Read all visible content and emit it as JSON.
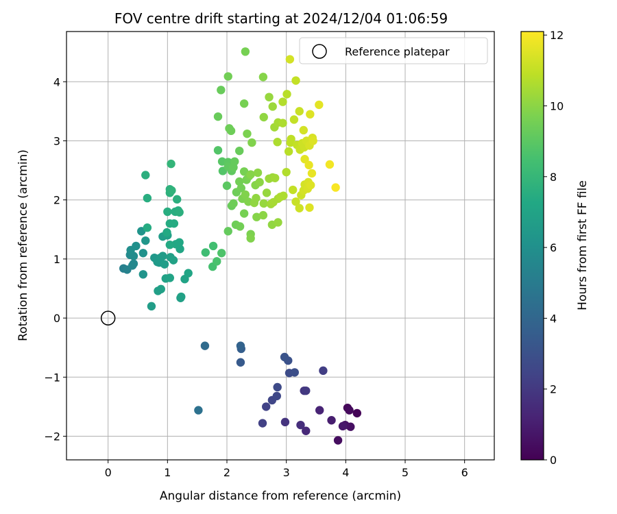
{
  "chart_data": {
    "type": "scatter",
    "title": "FOV centre drift starting at 2024/12/04 01:06:59",
    "xlabel": "Angular distance from reference (arcmin)",
    "ylabel": "Rotation from reference (arcmin)",
    "xlim": [
      -0.7,
      6.5
    ],
    "ylim": [
      -2.4,
      4.85
    ],
    "xticks": [
      0,
      1,
      2,
      3,
      4,
      5,
      6
    ],
    "yticks": [
      -2,
      -1,
      0,
      1,
      2,
      3,
      4
    ],
    "xtick_labels": [
      "0",
      "1",
      "2",
      "3",
      "4",
      "5",
      "6"
    ],
    "ytick_labels": [
      "−2",
      "−1",
      "0",
      "1",
      "2",
      "3",
      "4"
    ],
    "grid": true,
    "legend": {
      "placement": "upper right",
      "entries": [
        "Reference platepar"
      ]
    },
    "reference_point": {
      "x": 0,
      "y": 0,
      "marker": "open-circle"
    },
    "colorbar": {
      "label": "Hours from first FF file",
      "colormap": "viridis",
      "range": [
        0,
        12.1
      ],
      "ticks": [
        0,
        2,
        4,
        6,
        8,
        10,
        12
      ],
      "tick_labels": [
        "0",
        "2",
        "4",
        "6",
        "8",
        "10",
        "12"
      ]
    },
    "series": [
      {
        "points": [
          {
            "x": 3.87,
            "y": -2.07,
            "c": 0.4
          },
          {
            "x": 4.19,
            "y": -1.61,
            "c": 0.1
          },
          {
            "x": 4.03,
            "y": -1.52,
            "c": 0.2
          },
          {
            "x": 4.06,
            "y": -1.56,
            "c": 0.3
          },
          {
            "x": 4.08,
            "y": -1.84,
            "c": 0.5
          },
          {
            "x": 3.99,
            "y": -1.81,
            "c": 0.6
          },
          {
            "x": 3.95,
            "y": -1.83,
            "c": 0.8
          },
          {
            "x": 3.76,
            "y": -1.73,
            "c": 1.0
          },
          {
            "x": 3.56,
            "y": -1.56,
            "c": 1.2
          },
          {
            "x": 3.33,
            "y": -1.91,
            "c": 1.4
          },
          {
            "x": 3.24,
            "y": -1.81,
            "c": 1.6
          },
          {
            "x": 3.3,
            "y": -1.23,
            "c": 1.9
          },
          {
            "x": 3.33,
            "y": -1.23,
            "c": 2.0
          },
          {
            "x": 3.62,
            "y": -0.89,
            "c": 2.2
          },
          {
            "x": 2.98,
            "y": -1.76,
            "c": 1.8
          },
          {
            "x": 2.6,
            "y": -1.78,
            "c": 2.3
          },
          {
            "x": 2.66,
            "y": -1.5,
            "c": 2.4
          },
          {
            "x": 2.76,
            "y": -1.39,
            "c": 2.5
          },
          {
            "x": 2.84,
            "y": -1.32,
            "c": 2.6
          },
          {
            "x": 2.85,
            "y": -1.17,
            "c": 2.7
          },
          {
            "x": 3.05,
            "y": -0.93,
            "c": 2.8
          },
          {
            "x": 3.14,
            "y": -0.92,
            "c": 2.9
          },
          {
            "x": 3.03,
            "y": -0.72,
            "c": 3.0
          },
          {
            "x": 2.97,
            "y": -0.66,
            "c": 3.1
          },
          {
            "x": 2.23,
            "y": -0.75,
            "c": 3.4
          },
          {
            "x": 2.24,
            "y": -0.52,
            "c": 3.6
          },
          {
            "x": 2.23,
            "y": -0.47,
            "c": 3.8
          },
          {
            "x": 1.63,
            "y": -0.47,
            "c": 4.2
          },
          {
            "x": 1.52,
            "y": -1.56,
            "c": 4.5
          },
          {
            "x": 0.26,
            "y": 0.84,
            "c": 5.2
          },
          {
            "x": 0.32,
            "y": 0.82,
            "c": 5.3
          },
          {
            "x": 0.41,
            "y": 0.89,
            "c": 5.5
          },
          {
            "x": 0.43,
            "y": 0.92,
            "c": 5.6
          },
          {
            "x": 0.37,
            "y": 1.07,
            "c": 5.7
          },
          {
            "x": 0.43,
            "y": 1.05,
            "c": 5.8
          },
          {
            "x": 0.38,
            "y": 1.15,
            "c": 5.9
          },
          {
            "x": 0.47,
            "y": 1.22,
            "c": 6.0
          },
          {
            "x": 0.59,
            "y": 1.1,
            "c": 6.1
          },
          {
            "x": 0.56,
            "y": 1.47,
            "c": 6.2
          },
          {
            "x": 0.63,
            "y": 1.31,
            "c": 6.3
          },
          {
            "x": 0.59,
            "y": 0.74,
            "c": 6.2
          },
          {
            "x": 0.78,
            "y": 1.02,
            "c": 6.4
          },
          {
            "x": 0.83,
            "y": 0.95,
            "c": 6.5
          },
          {
            "x": 0.86,
            "y": 0.94,
            "c": 6.5
          },
          {
            "x": 0.88,
            "y": 1.02,
            "c": 6.6
          },
          {
            "x": 0.92,
            "y": 1.05,
            "c": 6.6
          },
          {
            "x": 0.95,
            "y": 0.91,
            "c": 6.7
          },
          {
            "x": 0.92,
            "y": 1.38,
            "c": 6.7
          },
          {
            "x": 1.0,
            "y": 1.4,
            "c": 6.8
          },
          {
            "x": 1.05,
            "y": 1.03,
            "c": 6.8
          },
          {
            "x": 1.1,
            "y": 0.98,
            "c": 6.9
          },
          {
            "x": 0.97,
            "y": 0.67,
            "c": 6.9
          },
          {
            "x": 1.04,
            "y": 0.68,
            "c": 7.0
          },
          {
            "x": 0.89,
            "y": 0.49,
            "c": 6.9
          },
          {
            "x": 0.84,
            "y": 0.46,
            "c": 6.8
          },
          {
            "x": 0.73,
            "y": 0.2,
            "c": 6.7
          },
          {
            "x": 1.22,
            "y": 0.34,
            "c": 6.8
          },
          {
            "x": 1.23,
            "y": 0.36,
            "c": 6.9
          },
          {
            "x": 1.29,
            "y": 0.66,
            "c": 7.0
          },
          {
            "x": 1.35,
            "y": 0.76,
            "c": 7.1
          },
          {
            "x": 1.21,
            "y": 1.17,
            "c": 7.1
          },
          {
            "x": 1.2,
            "y": 1.28,
            "c": 7.2
          },
          {
            "x": 1.14,
            "y": 1.25,
            "c": 7.2
          },
          {
            "x": 1.04,
            "y": 1.24,
            "c": 7.3
          },
          {
            "x": 0.99,
            "y": 1.45,
            "c": 7.3
          },
          {
            "x": 1.04,
            "y": 1.6,
            "c": 7.4
          },
          {
            "x": 1.11,
            "y": 1.6,
            "c": 7.4
          },
          {
            "x": 1.13,
            "y": 1.8,
            "c": 7.5
          },
          {
            "x": 1.18,
            "y": 1.82,
            "c": 7.5
          },
          {
            "x": 1.2,
            "y": 1.79,
            "c": 7.6
          },
          {
            "x": 1.0,
            "y": 1.8,
            "c": 7.5
          },
          {
            "x": 1.16,
            "y": 2.01,
            "c": 7.6
          },
          {
            "x": 1.04,
            "y": 2.12,
            "c": 7.7
          },
          {
            "x": 1.04,
            "y": 2.18,
            "c": 7.7
          },
          {
            "x": 1.07,
            "y": 2.16,
            "c": 7.8
          },
          {
            "x": 0.66,
            "y": 2.03,
            "c": 7.5
          },
          {
            "x": 0.66,
            "y": 1.53,
            "c": 7.4
          },
          {
            "x": 0.63,
            "y": 2.42,
            "c": 7.6
          },
          {
            "x": 1.06,
            "y": 2.61,
            "c": 7.9
          },
          {
            "x": 1.64,
            "y": 1.11,
            "c": 8.3
          },
          {
            "x": 1.77,
            "y": 1.22,
            "c": 8.4
          },
          {
            "x": 1.76,
            "y": 0.87,
            "c": 8.5
          },
          {
            "x": 1.83,
            "y": 0.96,
            "c": 8.6
          },
          {
            "x": 1.91,
            "y": 1.1,
            "c": 8.7
          },
          {
            "x": 1.85,
            "y": 2.84,
            "c": 8.8
          },
          {
            "x": 1.93,
            "y": 2.49,
            "c": 8.8
          },
          {
            "x": 1.92,
            "y": 2.65,
            "c": 8.9
          },
          {
            "x": 2.0,
            "y": 2.24,
            "c": 9.0
          },
          {
            "x": 2.02,
            "y": 2.64,
            "c": 9.0
          },
          {
            "x": 2.02,
            "y": 2.56,
            "c": 9.1
          },
          {
            "x": 2.08,
            "y": 2.49,
            "c": 9.1
          },
          {
            "x": 2.11,
            "y": 2.55,
            "c": 9.2
          },
          {
            "x": 2.13,
            "y": 2.65,
            "c": 9.2
          },
          {
            "x": 2.21,
            "y": 2.83,
            "c": 9.3
          },
          {
            "x": 2.08,
            "y": 1.9,
            "c": 9.3
          },
          {
            "x": 2.11,
            "y": 1.94,
            "c": 9.4
          },
          {
            "x": 2.16,
            "y": 2.13,
            "c": 9.4
          },
          {
            "x": 2.21,
            "y": 2.31,
            "c": 9.5
          },
          {
            "x": 2.24,
            "y": 2.2,
            "c": 9.5
          },
          {
            "x": 2.29,
            "y": 2.48,
            "c": 9.6
          },
          {
            "x": 2.33,
            "y": 2.34,
            "c": 9.6
          },
          {
            "x": 2.37,
            "y": 2.4,
            "c": 9.7
          },
          {
            "x": 2.26,
            "y": 2.02,
            "c": 9.7
          },
          {
            "x": 2.31,
            "y": 2.09,
            "c": 9.8
          },
          {
            "x": 2.36,
            "y": 1.97,
            "c": 9.8
          },
          {
            "x": 2.4,
            "y": 2.43,
            "c": 9.9
          },
          {
            "x": 2.48,
            "y": 2.25,
            "c": 9.9
          },
          {
            "x": 2.52,
            "y": 2.46,
            "c": 10.0
          },
          {
            "x": 2.55,
            "y": 2.3,
            "c": 10.0
          },
          {
            "x": 2.49,
            "y": 2.03,
            "c": 10.1
          },
          {
            "x": 2.46,
            "y": 1.95,
            "c": 10.1
          },
          {
            "x": 2.62,
            "y": 1.94,
            "c": 10.2
          },
          {
            "x": 2.67,
            "y": 2.12,
            "c": 10.2
          },
          {
            "x": 2.71,
            "y": 2.36,
            "c": 10.3
          },
          {
            "x": 2.77,
            "y": 2.38,
            "c": 10.3
          },
          {
            "x": 2.81,
            "y": 2.37,
            "c": 10.4
          },
          {
            "x": 2.74,
            "y": 1.93,
            "c": 10.4
          },
          {
            "x": 2.78,
            "y": 1.96,
            "c": 10.5
          },
          {
            "x": 2.86,
            "y": 2.02,
            "c": 10.5
          },
          {
            "x": 2.9,
            "y": 2.05,
            "c": 10.6
          },
          {
            "x": 2.95,
            "y": 2.07,
            "c": 10.6
          },
          {
            "x": 2.15,
            "y": 1.58,
            "c": 9.4
          },
          {
            "x": 2.22,
            "y": 1.55,
            "c": 9.5
          },
          {
            "x": 2.29,
            "y": 1.77,
            "c": 9.6
          },
          {
            "x": 2.4,
            "y": 1.42,
            "c": 9.7
          },
          {
            "x": 2.4,
            "y": 1.35,
            "c": 9.8
          },
          {
            "x": 2.5,
            "y": 1.71,
            "c": 9.9
          },
          {
            "x": 2.61,
            "y": 1.74,
            "c": 10.0
          },
          {
            "x": 2.76,
            "y": 1.58,
            "c": 10.1
          },
          {
            "x": 2.86,
            "y": 1.62,
            "c": 10.2
          },
          {
            "x": 2.02,
            "y": 1.47,
            "c": 9.2
          },
          {
            "x": 1.85,
            "y": 3.41,
            "c": 9.3
          },
          {
            "x": 1.9,
            "y": 3.86,
            "c": 9.3
          },
          {
            "x": 2.04,
            "y": 3.21,
            "c": 9.4
          },
          {
            "x": 2.07,
            "y": 3.17,
            "c": 9.4
          },
          {
            "x": 2.02,
            "y": 4.09,
            "c": 9.5
          },
          {
            "x": 2.29,
            "y": 3.63,
            "c": 9.6
          },
          {
            "x": 2.34,
            "y": 3.12,
            "c": 9.7
          },
          {
            "x": 2.42,
            "y": 2.97,
            "c": 9.8
          },
          {
            "x": 2.31,
            "y": 4.51,
            "c": 9.6
          },
          {
            "x": 2.61,
            "y": 4.08,
            "c": 9.9
          },
          {
            "x": 2.62,
            "y": 3.4,
            "c": 10.1
          },
          {
            "x": 2.71,
            "y": 3.74,
            "c": 10.2
          },
          {
            "x": 2.77,
            "y": 3.58,
            "c": 10.3
          },
          {
            "x": 2.8,
            "y": 3.23,
            "c": 10.4
          },
          {
            "x": 2.86,
            "y": 3.31,
            "c": 10.5
          },
          {
            "x": 2.94,
            "y": 3.3,
            "c": 10.6
          },
          {
            "x": 2.94,
            "y": 3.66,
            "c": 10.7
          },
          {
            "x": 2.85,
            "y": 2.98,
            "c": 10.6
          },
          {
            "x": 3.01,
            "y": 3.79,
            "c": 10.8
          },
          {
            "x": 3.16,
            "y": 4.02,
            "c": 11.0
          },
          {
            "x": 3.06,
            "y": 4.38,
            "c": 11.3
          },
          {
            "x": 3.0,
            "y": 2.47,
            "c": 10.7
          },
          {
            "x": 3.04,
            "y": 2.82,
            "c": 10.8
          },
          {
            "x": 3.07,
            "y": 2.97,
            "c": 10.9
          },
          {
            "x": 3.08,
            "y": 3.03,
            "c": 10.9
          },
          {
            "x": 3.13,
            "y": 3.36,
            "c": 11.0
          },
          {
            "x": 3.18,
            "y": 2.93,
            "c": 11.0
          },
          {
            "x": 3.22,
            "y": 3.5,
            "c": 11.1
          },
          {
            "x": 3.23,
            "y": 2.85,
            "c": 11.1
          },
          {
            "x": 3.27,
            "y": 2.96,
            "c": 11.2
          },
          {
            "x": 3.3,
            "y": 2.89,
            "c": 11.2
          },
          {
            "x": 3.29,
            "y": 3.18,
            "c": 11.3
          },
          {
            "x": 3.34,
            "y": 3.0,
            "c": 11.3
          },
          {
            "x": 3.39,
            "y": 2.92,
            "c": 11.4
          },
          {
            "x": 3.44,
            "y": 3.05,
            "c": 11.4
          },
          {
            "x": 3.45,
            "y": 3.0,
            "c": 11.5
          },
          {
            "x": 3.4,
            "y": 3.45,
            "c": 11.5
          },
          {
            "x": 3.55,
            "y": 3.61,
            "c": 11.6
          },
          {
            "x": 3.11,
            "y": 2.17,
            "c": 11.0
          },
          {
            "x": 3.16,
            "y": 1.97,
            "c": 11.1
          },
          {
            "x": 3.22,
            "y": 1.86,
            "c": 11.2
          },
          {
            "x": 3.25,
            "y": 2.08,
            "c": 11.2
          },
          {
            "x": 3.29,
            "y": 2.16,
            "c": 11.3
          },
          {
            "x": 3.31,
            "y": 2.26,
            "c": 11.3
          },
          {
            "x": 3.36,
            "y": 2.19,
            "c": 11.4
          },
          {
            "x": 3.37,
            "y": 2.3,
            "c": 11.4
          },
          {
            "x": 3.39,
            "y": 1.87,
            "c": 11.5
          },
          {
            "x": 3.41,
            "y": 2.25,
            "c": 11.5
          },
          {
            "x": 3.31,
            "y": 2.69,
            "c": 11.6
          },
          {
            "x": 3.38,
            "y": 2.59,
            "c": 11.7
          },
          {
            "x": 3.43,
            "y": 2.45,
            "c": 11.7
          },
          {
            "x": 3.73,
            "y": 2.6,
            "c": 11.9
          },
          {
            "x": 3.83,
            "y": 2.21,
            "c": 12.0
          }
        ]
      }
    ]
  }
}
